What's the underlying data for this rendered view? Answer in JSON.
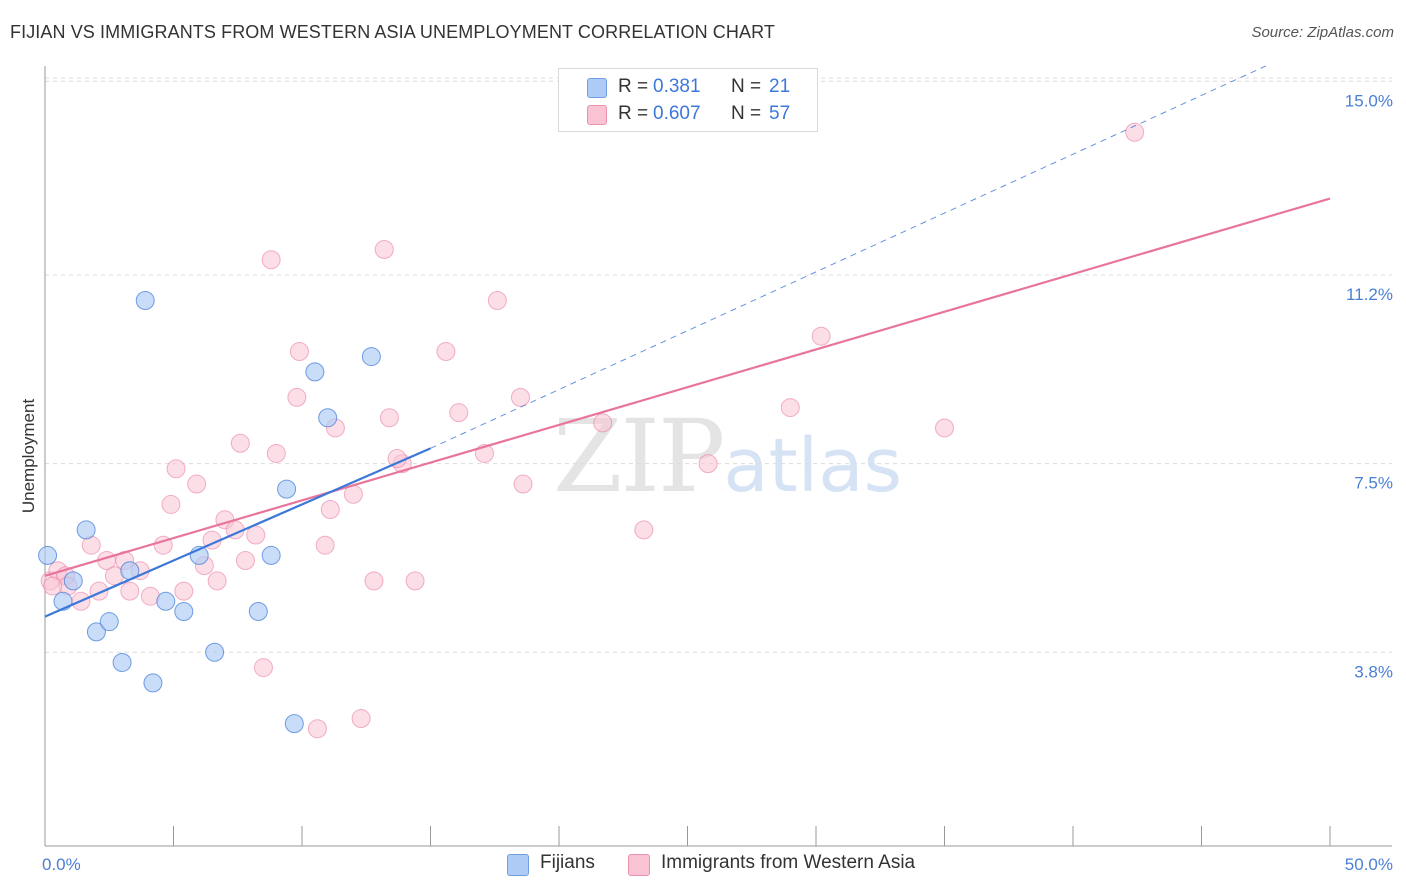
{
  "header": {
    "title": "FIJIAN VS IMMIGRANTS FROM WESTERN ASIA UNEMPLOYMENT CORRELATION CHART",
    "source": "Source: ZipAtlas.com"
  },
  "watermark": {
    "zip": "ZIP",
    "atlas": "atlas"
  },
  "legend": {
    "rows": [
      {
        "r_label": "R =",
        "r_value": "0.381",
        "n_label": "N =",
        "n_value": "21",
        "color": "#aecbf5"
      },
      {
        "r_label": "R =",
        "r_value": "0.607",
        "n_label": "N =",
        "n_value": "57",
        "color": "#f9c3d3"
      }
    ]
  },
  "bottom_legend": {
    "fijians": "Fijians",
    "western_asia": "Immigrants from Western Asia"
  },
  "chart_data": {
    "type": "scatter",
    "title": "FIJIAN VS IMMIGRANTS FROM WESTERN ASIA UNEMPLOYMENT CORRELATION CHART",
    "xlabel": "",
    "ylabel": "Unemployment",
    "xlim": [
      0,
      50
    ],
    "ylim": [
      0,
      15.3
    ],
    "x_tick_labels": [
      "0.0%",
      "50.0%"
    ],
    "y_ticks": [
      3.8,
      7.5,
      11.2,
      15.0
    ],
    "y_tick_labels": [
      "3.8%",
      "7.5%",
      "11.2%",
      "15.0%"
    ],
    "grid": true,
    "colors": {
      "fijians": "#3c78d8",
      "western_asia": "#e8759c",
      "fijians_fill": "#aecbf5",
      "western_asia_fill": "#f9c3d3"
    },
    "series": [
      {
        "name": "Fijians",
        "r": 0.381,
        "n": 21,
        "points": [
          [
            0.1,
            5.7
          ],
          [
            0.7,
            4.8
          ],
          [
            1.1,
            5.2
          ],
          [
            1.6,
            6.2
          ],
          [
            2.0,
            4.2
          ],
          [
            2.5,
            4.4
          ],
          [
            3.0,
            3.6
          ],
          [
            3.9,
            10.7
          ],
          [
            3.3,
            5.4
          ],
          [
            4.2,
            3.2
          ],
          [
            4.7,
            4.8
          ],
          [
            5.4,
            4.6
          ],
          [
            6.0,
            5.7
          ],
          [
            6.6,
            3.8
          ],
          [
            8.3,
            4.6
          ],
          [
            8.8,
            5.7
          ],
          [
            9.4,
            7.0
          ],
          [
            10.5,
            9.3
          ],
          [
            11.0,
            8.4
          ],
          [
            12.7,
            9.6
          ],
          [
            9.7,
            2.4
          ]
        ],
        "trend": {
          "x0": 0.0,
          "y0": 4.5,
          "x1": 15.0,
          "y1": 7.8,
          "dashed_to_x": 47.5,
          "dashed_to_y": 15.3
        }
      },
      {
        "name": "Immigrants from Western Asia",
        "r": 0.607,
        "n": 57,
        "points": [
          [
            0.2,
            5.2
          ],
          [
            0.5,
            5.4
          ],
          [
            0.8,
            5.3
          ],
          [
            0.9,
            5.1
          ],
          [
            1.4,
            4.8
          ],
          [
            1.8,
            5.9
          ],
          [
            2.1,
            5.0
          ],
          [
            2.4,
            5.6
          ],
          [
            2.7,
            5.3
          ],
          [
            3.1,
            5.6
          ],
          [
            3.3,
            5.0
          ],
          [
            3.7,
            5.4
          ],
          [
            4.1,
            4.9
          ],
          [
            4.6,
            5.9
          ],
          [
            4.9,
            6.7
          ],
          [
            5.1,
            7.4
          ],
          [
            5.4,
            5.0
          ],
          [
            5.9,
            7.1
          ],
          [
            6.2,
            5.5
          ],
          [
            6.5,
            6.0
          ],
          [
            6.7,
            5.2
          ],
          [
            7.0,
            6.4
          ],
          [
            7.4,
            6.2
          ],
          [
            7.6,
            7.9
          ],
          [
            7.8,
            5.6
          ],
          [
            8.2,
            6.1
          ],
          [
            8.5,
            3.5
          ],
          [
            8.8,
            11.5
          ],
          [
            9.0,
            7.7
          ],
          [
            9.8,
            8.8
          ],
          [
            9.9,
            9.7
          ],
          [
            10.6,
            2.3
          ],
          [
            11.1,
            6.6
          ],
          [
            11.3,
            8.2
          ],
          [
            10.9,
            5.9
          ],
          [
            12.0,
            6.9
          ],
          [
            12.3,
            2.5
          ],
          [
            12.8,
            5.2
          ],
          [
            13.2,
            11.7
          ],
          [
            13.4,
            8.4
          ],
          [
            13.9,
            7.5
          ],
          [
            13.7,
            7.6
          ],
          [
            14.4,
            5.2
          ],
          [
            15.6,
            9.7
          ],
          [
            16.1,
            8.5
          ],
          [
            17.1,
            7.7
          ],
          [
            17.6,
            10.7
          ],
          [
            18.5,
            8.8
          ],
          [
            18.6,
            7.1
          ],
          [
            21.7,
            8.3
          ],
          [
            23.3,
            6.2
          ],
          [
            25.8,
            7.5
          ],
          [
            29.0,
            8.6
          ],
          [
            30.2,
            10.0
          ],
          [
            35.0,
            8.2
          ],
          [
            42.4,
            14.0
          ],
          [
            0.3,
            5.1
          ]
        ],
        "trend": {
          "x0": 0.0,
          "y0": 5.3,
          "x1": 50.0,
          "y1": 12.7
        }
      }
    ]
  }
}
